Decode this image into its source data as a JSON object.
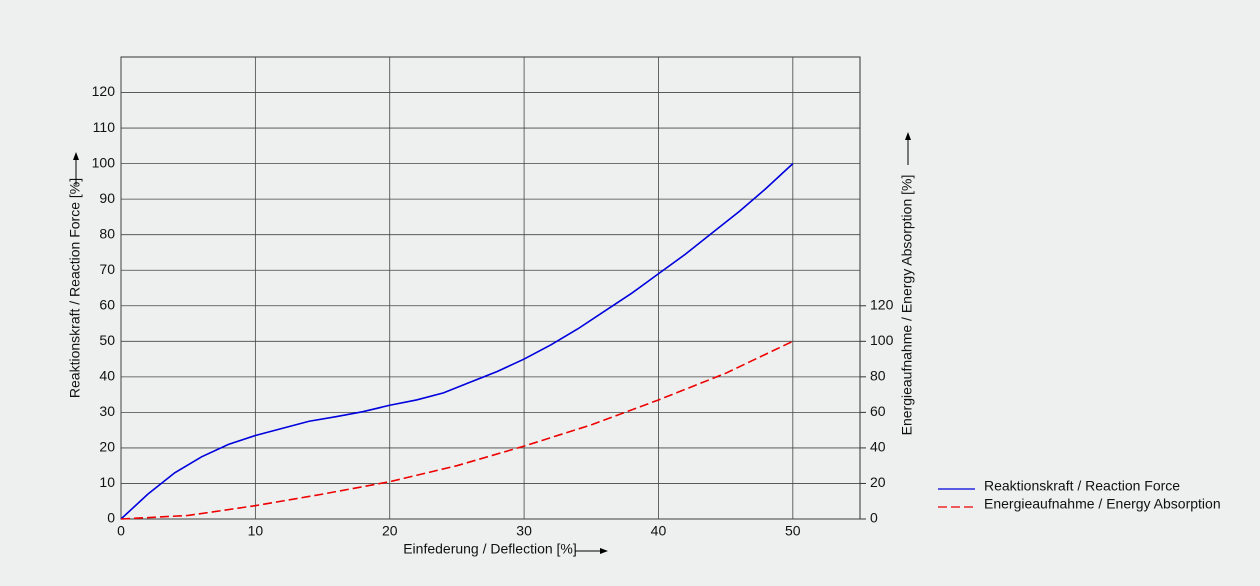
{
  "chart_data": {
    "type": "line",
    "x_label": "Einfederung / Deflection [%]",
    "y_label": "Reaktionskraft / Reaction Force [%]",
    "y2_label": "Energieaufnahme / Energy Absorption [%]",
    "xlim": [
      0,
      55
    ],
    "xticks": [
      0,
      10,
      20,
      30,
      40,
      50
    ],
    "ylim": [
      0,
      130
    ],
    "yticks": [
      0,
      10,
      20,
      30,
      40,
      50,
      60,
      70,
      80,
      90,
      100,
      110,
      120
    ],
    "y2lim": [
      0,
      260
    ],
    "y2ticks": [
      0,
      20,
      40,
      60,
      80,
      100,
      120
    ],
    "grid": true,
    "legend": "right",
    "series": [
      {
        "name": "Reaktionskraft / Reaction Force",
        "color": "#0000dd",
        "dash": "solid",
        "x": [
          0,
          2,
          4,
          6,
          8,
          10,
          12,
          14,
          16,
          18,
          20,
          22,
          24,
          26,
          28,
          30,
          32,
          34,
          36,
          38,
          40,
          42,
          44,
          46,
          48,
          50
        ],
        "values": [
          0,
          7,
          13,
          17.5,
          21,
          23.5,
          25.5,
          27.5,
          28.8,
          30.2,
          32,
          33.5,
          35.5,
          38.5,
          41.5,
          45,
          49,
          53.5,
          58.5,
          63.5,
          69,
          74.5,
          80.5,
          86.5,
          93,
          100
        ]
      },
      {
        "name": "Energieaufnahme / Energy Absorption",
        "color": "#ee0000",
        "dash": "dashed",
        "axis": "y2",
        "x": [
          0,
          5,
          10,
          15,
          20,
          25,
          30,
          35,
          40,
          45,
          50
        ],
        "values": [
          0,
          2,
          7.5,
          14,
          21,
          30,
          41,
          53,
          67,
          82,
          100
        ]
      }
    ]
  }
}
